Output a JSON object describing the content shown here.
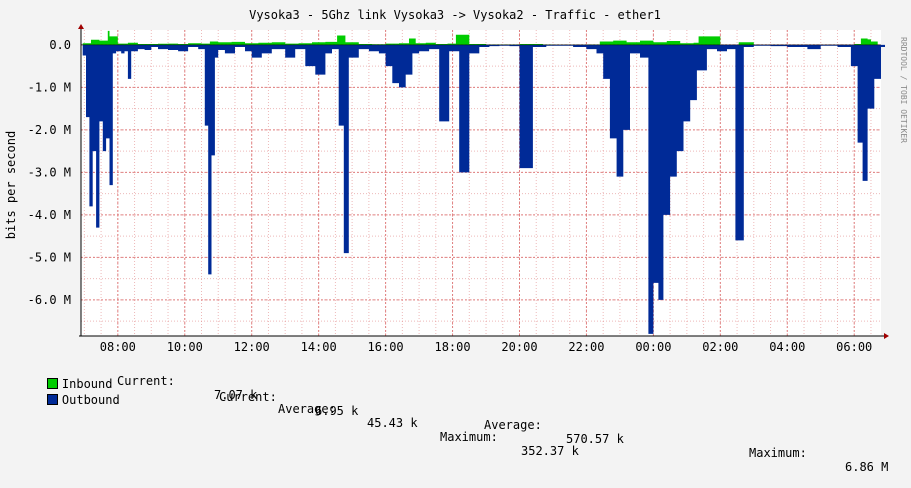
{
  "chart_data": {
    "type": "area",
    "title": "Vysoka3 - 5Ghz link Vysoka3 -> Vysoka2 - Traffic - ether1",
    "ylabel": "bits per second",
    "watermark": "RRDTOOL / TOBI OETIKER",
    "y_tick_labels": [
      "0.0",
      "-1.0 M",
      "-2.0 M",
      "-3.0 M",
      "-4.0 M",
      "-5.0 M",
      "-6.0 M"
    ],
    "y_ticks": [
      0,
      -1000000,
      -2000000,
      -3000000,
      -4000000,
      -5000000,
      -6000000
    ],
    "ylim": [
      -6850000,
      350000
    ],
    "x_tick_labels": [
      "08:00",
      "10:00",
      "12:00",
      "14:00",
      "16:00",
      "18:00",
      "20:00",
      "22:00",
      "00:00",
      "02:00",
      "04:00",
      "06:00"
    ],
    "x_ticks_hours": [
      8,
      10,
      12,
      14,
      16,
      18,
      20,
      22,
      24,
      26,
      28,
      30
    ],
    "xlim_hours": [
      6.9,
      30.8
    ],
    "grid": true,
    "colors": {
      "inbound": "#00cc00",
      "outbound": "#002a97",
      "grid": "#e08080",
      "axis": "#000000"
    },
    "series": [
      {
        "name": "Inbound",
        "x": [
          6.95,
          7.2,
          7.45,
          7.7,
          7.75,
          8.0,
          8.3,
          8.6,
          8.9,
          9.2,
          9.5,
          9.8,
          10.1,
          10.5,
          10.75,
          11.0,
          11.4,
          11.8,
          12.2,
          12.6,
          13.0,
          13.4,
          13.8,
          14.2,
          14.55,
          14.8,
          15.2,
          15.6,
          16.0,
          16.4,
          16.7,
          16.9,
          17.2,
          17.5,
          17.85,
          18.1,
          18.5,
          19.0,
          19.5,
          20.0,
          20.7,
          21.0,
          21.5,
          22.0,
          22.4,
          22.8,
          23.2,
          23.6,
          24.0,
          24.4,
          24.8,
          25.2,
          25.35,
          26.0,
          26.4,
          26.55,
          27.0,
          27.5,
          28.0,
          28.6,
          29.0,
          29.5,
          30.0,
          30.2,
          30.4,
          30.5,
          30.7
        ],
        "values": [
          40000,
          120000,
          100000,
          330000,
          200000,
          30000,
          50000,
          20000,
          20000,
          25000,
          30000,
          20000,
          40000,
          30000,
          80000,
          60000,
          70000,
          40000,
          50000,
          60000,
          30000,
          40000,
          60000,
          70000,
          220000,
          60000,
          20000,
          15000,
          30000,
          40000,
          150000,
          40000,
          50000,
          20000,
          30000,
          240000,
          20000,
          10000,
          10000,
          20000,
          10000,
          5000,
          5000,
          10000,
          80000,
          100000,
          60000,
          100000,
          60000,
          90000,
          40000,
          50000,
          200000,
          0,
          0,
          60000,
          0,
          0,
          0,
          0,
          0,
          0,
          20000,
          150000,
          130000,
          80000,
          0
        ]
      },
      {
        "name": "Outbound",
        "x": [
          6.95,
          7.05,
          7.15,
          7.25,
          7.35,
          7.45,
          7.55,
          7.65,
          7.75,
          7.85,
          7.95,
          8.1,
          8.2,
          8.3,
          8.4,
          8.6,
          8.8,
          9.0,
          9.2,
          9.5,
          9.8,
          10.1,
          10.4,
          10.6,
          10.7,
          10.8,
          10.9,
          11.0,
          11.2,
          11.5,
          11.8,
          12.0,
          12.3,
          12.6,
          13.0,
          13.3,
          13.6,
          13.9,
          14.2,
          14.4,
          14.6,
          14.75,
          14.9,
          15.2,
          15.5,
          15.8,
          16.0,
          16.2,
          16.4,
          16.6,
          16.8,
          17.0,
          17.3,
          17.6,
          17.9,
          18.2,
          18.5,
          18.8,
          19.1,
          19.4,
          19.7,
          20.0,
          20.4,
          20.8,
          21.2,
          21.6,
          22.0,
          22.3,
          22.5,
          22.7,
          22.9,
          23.1,
          23.3,
          23.6,
          23.85,
          24.0,
          24.15,
          24.3,
          24.5,
          24.7,
          24.9,
          25.1,
          25.3,
          25.6,
          25.9,
          26.2,
          26.45,
          26.7,
          27.0,
          27.5,
          28.0,
          28.6,
          29.0,
          29.5,
          29.9,
          30.1,
          30.25,
          30.4,
          30.6,
          30.8
        ],
        "values": [
          -250000,
          -1700000,
          -3800000,
          -2500000,
          -4300000,
          -1800000,
          -2500000,
          -2200000,
          -3300000,
          -200000,
          -150000,
          -200000,
          -150000,
          -800000,
          -150000,
          -100000,
          -120000,
          -50000,
          -100000,
          -120000,
          -150000,
          -50000,
          -100000,
          -1900000,
          -5400000,
          -2600000,
          -300000,
          -120000,
          -200000,
          -50000,
          -150000,
          -300000,
          -200000,
          -100000,
          -300000,
          -100000,
          -500000,
          -700000,
          -200000,
          -100000,
          -1900000,
          -4900000,
          -300000,
          -100000,
          -150000,
          -200000,
          -500000,
          -900000,
          -1000000,
          -700000,
          -200000,
          -150000,
          -100000,
          -1800000,
          -150000,
          -3000000,
          -200000,
          -50000,
          -30000,
          -20000,
          -30000,
          -2900000,
          -50000,
          -20000,
          -20000,
          -50000,
          -100000,
          -200000,
          -800000,
          -2200000,
          -3100000,
          -2000000,
          -200000,
          -300000,
          -6800000,
          -5600000,
          -6000000,
          -4000000,
          -3100000,
          -2500000,
          -1800000,
          -1300000,
          -600000,
          -100000,
          -150000,
          -100000,
          -4600000,
          -50000,
          -20000,
          -30000,
          -50000,
          -100000,
          -20000,
          -50000,
          -500000,
          -2300000,
          -3200000,
          -1500000,
          -800000,
          -50000
        ]
      }
    ]
  },
  "legend": {
    "inbound": {
      "name": "Inbound",
      "current_label": "Current:",
      "current": "7.07 k",
      "average_label": "Average:",
      "average": "45.43 k",
      "maximum_label": "Maximum:",
      "maximum": "352.37 k"
    },
    "outbound": {
      "name": "Outbound",
      "current_label": "Current:",
      "current": "6.95 k",
      "average_label": "Average:",
      "average": "570.57 k",
      "maximum_label": "Maximum:",
      "maximum": "6.86 M"
    }
  }
}
